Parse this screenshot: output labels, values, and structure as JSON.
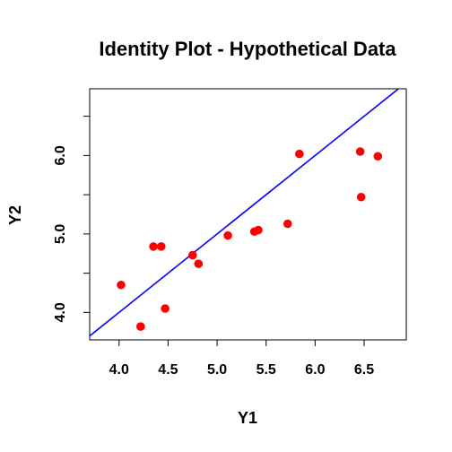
{
  "chart_data": {
    "type": "scatter",
    "title": "Identity Plot - Hypothetical Data",
    "xlabel": "Y1",
    "ylabel": "Y2",
    "xlim": [
      3.7,
      6.93
    ],
    "ylim": [
      3.65,
      6.85
    ],
    "x_ticks": [
      "4.0",
      "4.5",
      "5.0",
      "5.5",
      "6.0",
      "6.5"
    ],
    "y_ticks": [
      "4.0",
      "5.0",
      "6.0"
    ],
    "y_minor_ticks": [
      4.5,
      5.5,
      6.5
    ],
    "points": [
      {
        "x": 4.02,
        "y": 4.35
      },
      {
        "x": 4.22,
        "y": 3.82
      },
      {
        "x": 4.35,
        "y": 4.84
      },
      {
        "x": 4.43,
        "y": 4.84
      },
      {
        "x": 4.47,
        "y": 4.05
      },
      {
        "x": 4.75,
        "y": 4.73
      },
      {
        "x": 4.81,
        "y": 4.62
      },
      {
        "x": 5.11,
        "y": 4.98
      },
      {
        "x": 5.38,
        "y": 5.03
      },
      {
        "x": 5.42,
        "y": 5.05
      },
      {
        "x": 5.72,
        "y": 5.13
      },
      {
        "x": 5.84,
        "y": 6.02
      },
      {
        "x": 6.46,
        "y": 6.05
      },
      {
        "x": 6.47,
        "y": 5.47
      },
      {
        "x": 6.64,
        "y": 5.99
      }
    ],
    "reference_line": {
      "type": "identity",
      "color": "#0000ff"
    },
    "point_color": "#ff0000",
    "grid": false,
    "legend": "none"
  }
}
